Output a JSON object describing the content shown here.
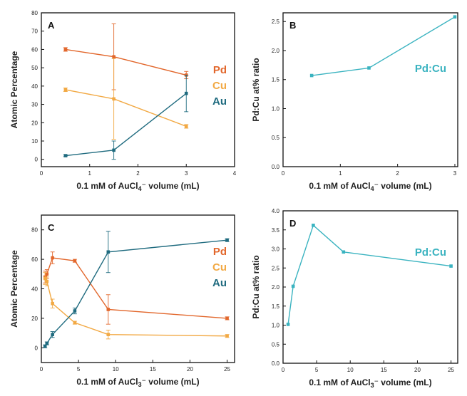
{
  "chart_data": [
    {
      "panel": "A",
      "type": "line",
      "xlabel": "0.1 mM of AuCl4⁻ volume (mL)",
      "ylabel": "Atomic Percentage",
      "xlim": [
        0,
        4
      ],
      "ylim": [
        -4,
        80
      ],
      "xticks": [
        "0",
        "1",
        "2",
        "3",
        "4"
      ],
      "yticks": [
        "0",
        "10",
        "20",
        "30",
        "40",
        "50",
        "60",
        "70",
        "80"
      ],
      "legend_position": "right",
      "series": [
        {
          "name": "Pd",
          "color": "#e2672c",
          "x": [
            0.5,
            1.5,
            3.0
          ],
          "y": [
            60,
            56,
            46
          ],
          "err": [
            1,
            18,
            2
          ]
        },
        {
          "name": "Cu",
          "color": "#f2a944",
          "x": [
            0.5,
            1.5,
            3.0
          ],
          "y": [
            38,
            33,
            18
          ],
          "err": [
            1,
            22,
            1
          ]
        },
        {
          "name": "Au",
          "color": "#1f6b7f",
          "x": [
            0.5,
            1.5,
            3.0
          ],
          "y": [
            2,
            5,
            36
          ],
          "err": [
            0.5,
            5,
            10
          ]
        }
      ]
    },
    {
      "panel": "B",
      "type": "line",
      "xlabel": "0.1 mM of AuCl4⁻ volume (mL)",
      "ylabel": "Pd:Cu at% ratio",
      "xlim": [
        0,
        3.05
      ],
      "ylim": [
        0,
        2.65
      ],
      "xticks": [
        "0",
        "1",
        "2",
        "3"
      ],
      "yticks": [
        "0.0",
        "0.5",
        "1.0",
        "1.5",
        "2.0",
        "2.5"
      ],
      "legend_position": "right",
      "series": [
        {
          "name": "Pd:Cu",
          "color": "#3ab3c0",
          "x": [
            0.5,
            1.5,
            3.0
          ],
          "y": [
            1.57,
            1.7,
            2.58
          ],
          "err": [
            0,
            0,
            0
          ]
        }
      ]
    },
    {
      "panel": "C",
      "type": "line",
      "xlabel": "0.1 mM of AuCl3⁻ volume (mL)",
      "ylabel": "Atomic Percentage",
      "xlim": [
        0,
        26
      ],
      "ylim": [
        -10,
        90
      ],
      "xticks": [
        "0",
        "5",
        "10",
        "15",
        "20",
        "25"
      ],
      "yticks": [
        "0",
        "20",
        "40",
        "60",
        "80"
      ],
      "legend_position": "right",
      "series": [
        {
          "name": "Pd",
          "color": "#e2672c",
          "x": [
            0.5,
            0.75,
            1.5,
            4.5,
            9,
            25
          ],
          "y": [
            48,
            50,
            61,
            59,
            26,
            20
          ],
          "err": [
            4,
            3,
            4,
            1,
            10,
            1
          ]
        },
        {
          "name": "Cu",
          "color": "#f2a944",
          "x": [
            0.5,
            0.75,
            1.5,
            4.5,
            9,
            25
          ],
          "y": [
            47,
            45,
            30,
            17,
            9,
            8
          ],
          "err": [
            4,
            3,
            3,
            1,
            3,
            1
          ]
        },
        {
          "name": "Au",
          "color": "#1f6b7f",
          "x": [
            0.5,
            0.75,
            1.5,
            4.5,
            9,
            25
          ],
          "y": [
            1,
            3,
            9,
            25,
            65,
            73
          ],
          "err": [
            1,
            1,
            2,
            2,
            14,
            1
          ]
        }
      ]
    },
    {
      "panel": "D",
      "type": "line",
      "xlabel": "0.1 mM of AuCl3⁻ volume (mL)",
      "ylabel": "Pd:Cu at% ratio",
      "xlim": [
        0,
        26
      ],
      "ylim": [
        0,
        4.0
      ],
      "xticks": [
        "0",
        "5",
        "10",
        "15",
        "20",
        "25"
      ],
      "yticks": [
        "0.0",
        "0.5",
        "1.0",
        "1.5",
        "2.0",
        "2.5",
        "3.0",
        "3.5",
        "4.0"
      ],
      "legend_position": "right",
      "series": [
        {
          "name": "Pd:Cu",
          "color": "#3ab3c0",
          "x": [
            0.75,
            1.5,
            4.5,
            9,
            25
          ],
          "y": [
            1.02,
            2.02,
            3.62,
            2.92,
            2.55
          ],
          "err": [
            0,
            0,
            0,
            0,
            0
          ]
        }
      ]
    }
  ]
}
